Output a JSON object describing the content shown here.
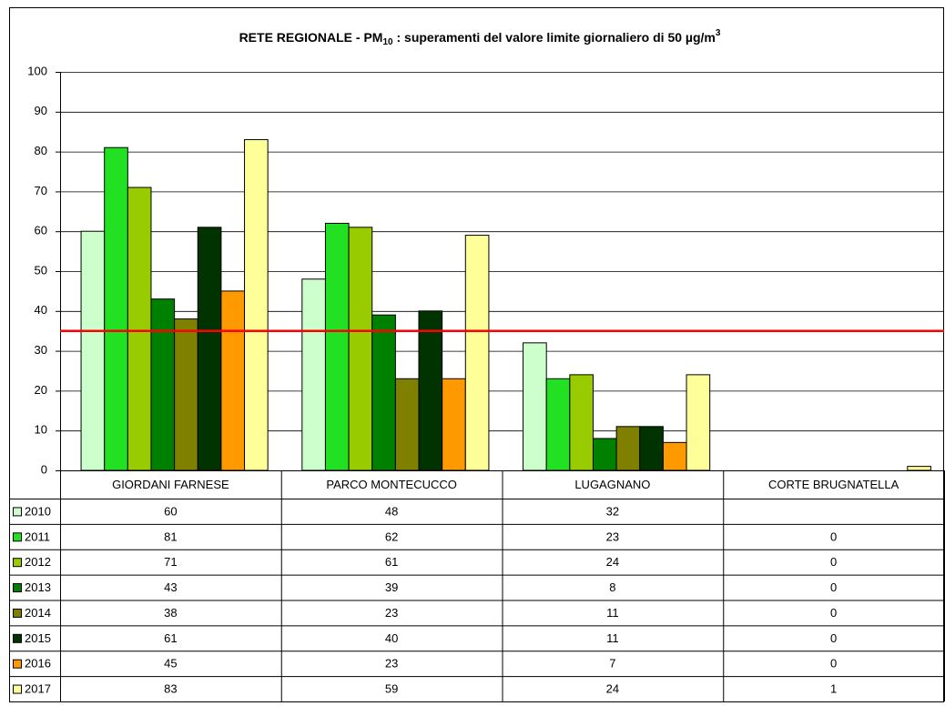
{
  "chart_data": {
    "type": "bar",
    "title": [
      "RETE REGIONALE - PM",
      "10",
      " :  superamenti del valore limite giornaliero di 50 µg/m",
      "3"
    ],
    "categories": [
      "GIORDANI FARNESE",
      "PARCO MONTECUCCO",
      "LUGAGNANO",
      "CORTE BRUGNATELLA"
    ],
    "series": [
      {
        "name": "2010",
        "color": "#ccffcc",
        "values": [
          60,
          48,
          32,
          null
        ]
      },
      {
        "name": "2011",
        "color": "#22e022",
        "values": [
          81,
          62,
          23,
          0
        ]
      },
      {
        "name": "2012",
        "color": "#99cc00",
        "values": [
          71,
          61,
          24,
          0
        ]
      },
      {
        "name": "2013",
        "color": "#008000",
        "values": [
          43,
          39,
          8,
          0
        ]
      },
      {
        "name": "2014",
        "color": "#808000",
        "values": [
          38,
          23,
          11,
          0
        ]
      },
      {
        "name": "2015",
        "color": "#003300",
        "values": [
          61,
          40,
          11,
          0
        ]
      },
      {
        "name": "2016",
        "color": "#ff9900",
        "values": [
          45,
          23,
          7,
          0
        ]
      },
      {
        "name": "2017",
        "color": "#ffff99",
        "values": [
          83,
          59,
          24,
          1
        ]
      }
    ],
    "ylim": [
      0,
      100
    ],
    "yticks": [
      0,
      10,
      20,
      30,
      40,
      50,
      60,
      70,
      80,
      90,
      100
    ],
    "grid": true,
    "limit_line": {
      "value": 35,
      "color": "#ff0000"
    }
  }
}
